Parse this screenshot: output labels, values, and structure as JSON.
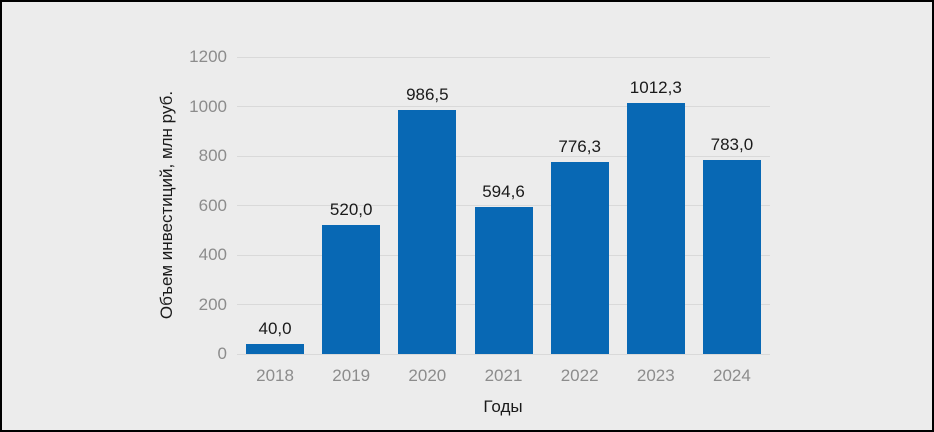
{
  "frame": {
    "background": "#ececec",
    "border_color": "#000000"
  },
  "chart_data": {
    "type": "bar",
    "title": "",
    "categories": [
      "2018",
      "2019",
      "2020",
      "2021",
      "2022",
      "2023",
      "2024"
    ],
    "values": [
      40.0,
      520.0,
      986.5,
      594.6,
      776.3,
      1012.3,
      783.0
    ],
    "value_labels": [
      "40,0",
      "520,0",
      "986,5",
      "594,6",
      "776,3",
      "1012,3",
      "783,0"
    ],
    "xlabel": "Годы",
    "ylabel": "Объем инвестиций, млн руб.",
    "ylim": [
      0,
      1200
    ],
    "yticks": [
      0,
      200,
      400,
      600,
      800,
      1000,
      1200
    ],
    "grid": true,
    "legend_position": "none",
    "bar_color": "#0868b4",
    "gridline_color": "#d9d9d9",
    "tick_label_color": "#8c8c8c",
    "value_label_color": "#1a1a1a",
    "axis_title_color": "#1a1a1a"
  }
}
